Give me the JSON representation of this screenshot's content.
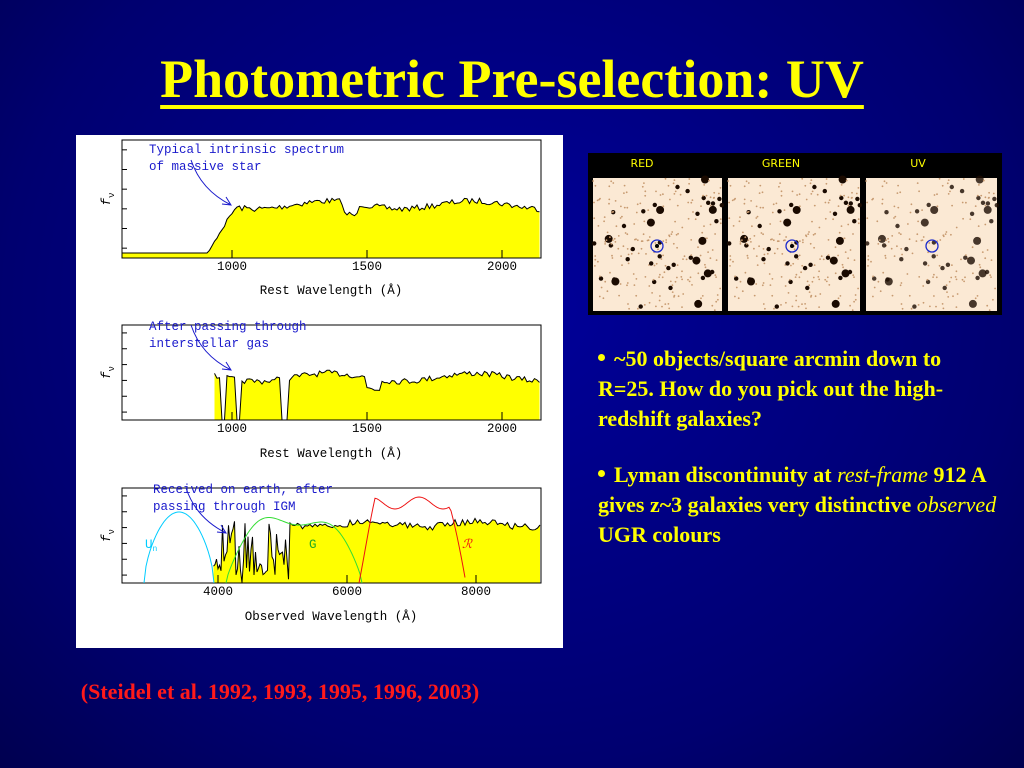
{
  "title": "Photometric Pre-selection: UV",
  "figure": {
    "panels": [
      {
        "annotation": [
          "Typical intrinsic spectrum",
          "of massive star"
        ],
        "ylabel": "f",
        "ysub": "ν",
        "xticks": [
          "1000",
          "1500",
          "2000"
        ],
        "xlabel": "Rest Wavelength (Å)"
      },
      {
        "annotation": [
          "After passing through",
          "interstellar gas"
        ],
        "ylabel": "f",
        "ysub": "ν",
        "xticks": [
          "1000",
          "1500",
          "2000"
        ],
        "xlabel": "Rest Wavelength (Å)"
      },
      {
        "annotation": [
          "Received on earth, after",
          "passing through IGM"
        ],
        "ylabel": "f",
        "ysub": "ν",
        "xticks": [
          "4000",
          "6000",
          "8000"
        ],
        "xlabel": "Observed Wavelength (Å)",
        "filters": {
          "u": "U",
          "usub": "n",
          "g": "G",
          "r": "ℛ"
        }
      }
    ]
  },
  "image": {
    "labels": [
      "RED",
      "GREEN",
      "UV"
    ]
  },
  "bullets": [
    [
      {
        "text": "~50 objects/square arcmin down to R=25. How do you pick out the high-redshift galaxies?"
      }
    ],
    [
      {
        "text": "Lyman discontinuity at "
      },
      {
        "text": "rest-frame",
        "italic": true
      },
      {
        "text": " 912 A gives z~3 galaxies very distinctive "
      },
      {
        "text": "observed",
        "italic": true
      },
      {
        "text": " UGR colours"
      }
    ]
  ],
  "citation": "(Steidel et al. 1992, 1993, 1995, 1996, 2003)"
}
